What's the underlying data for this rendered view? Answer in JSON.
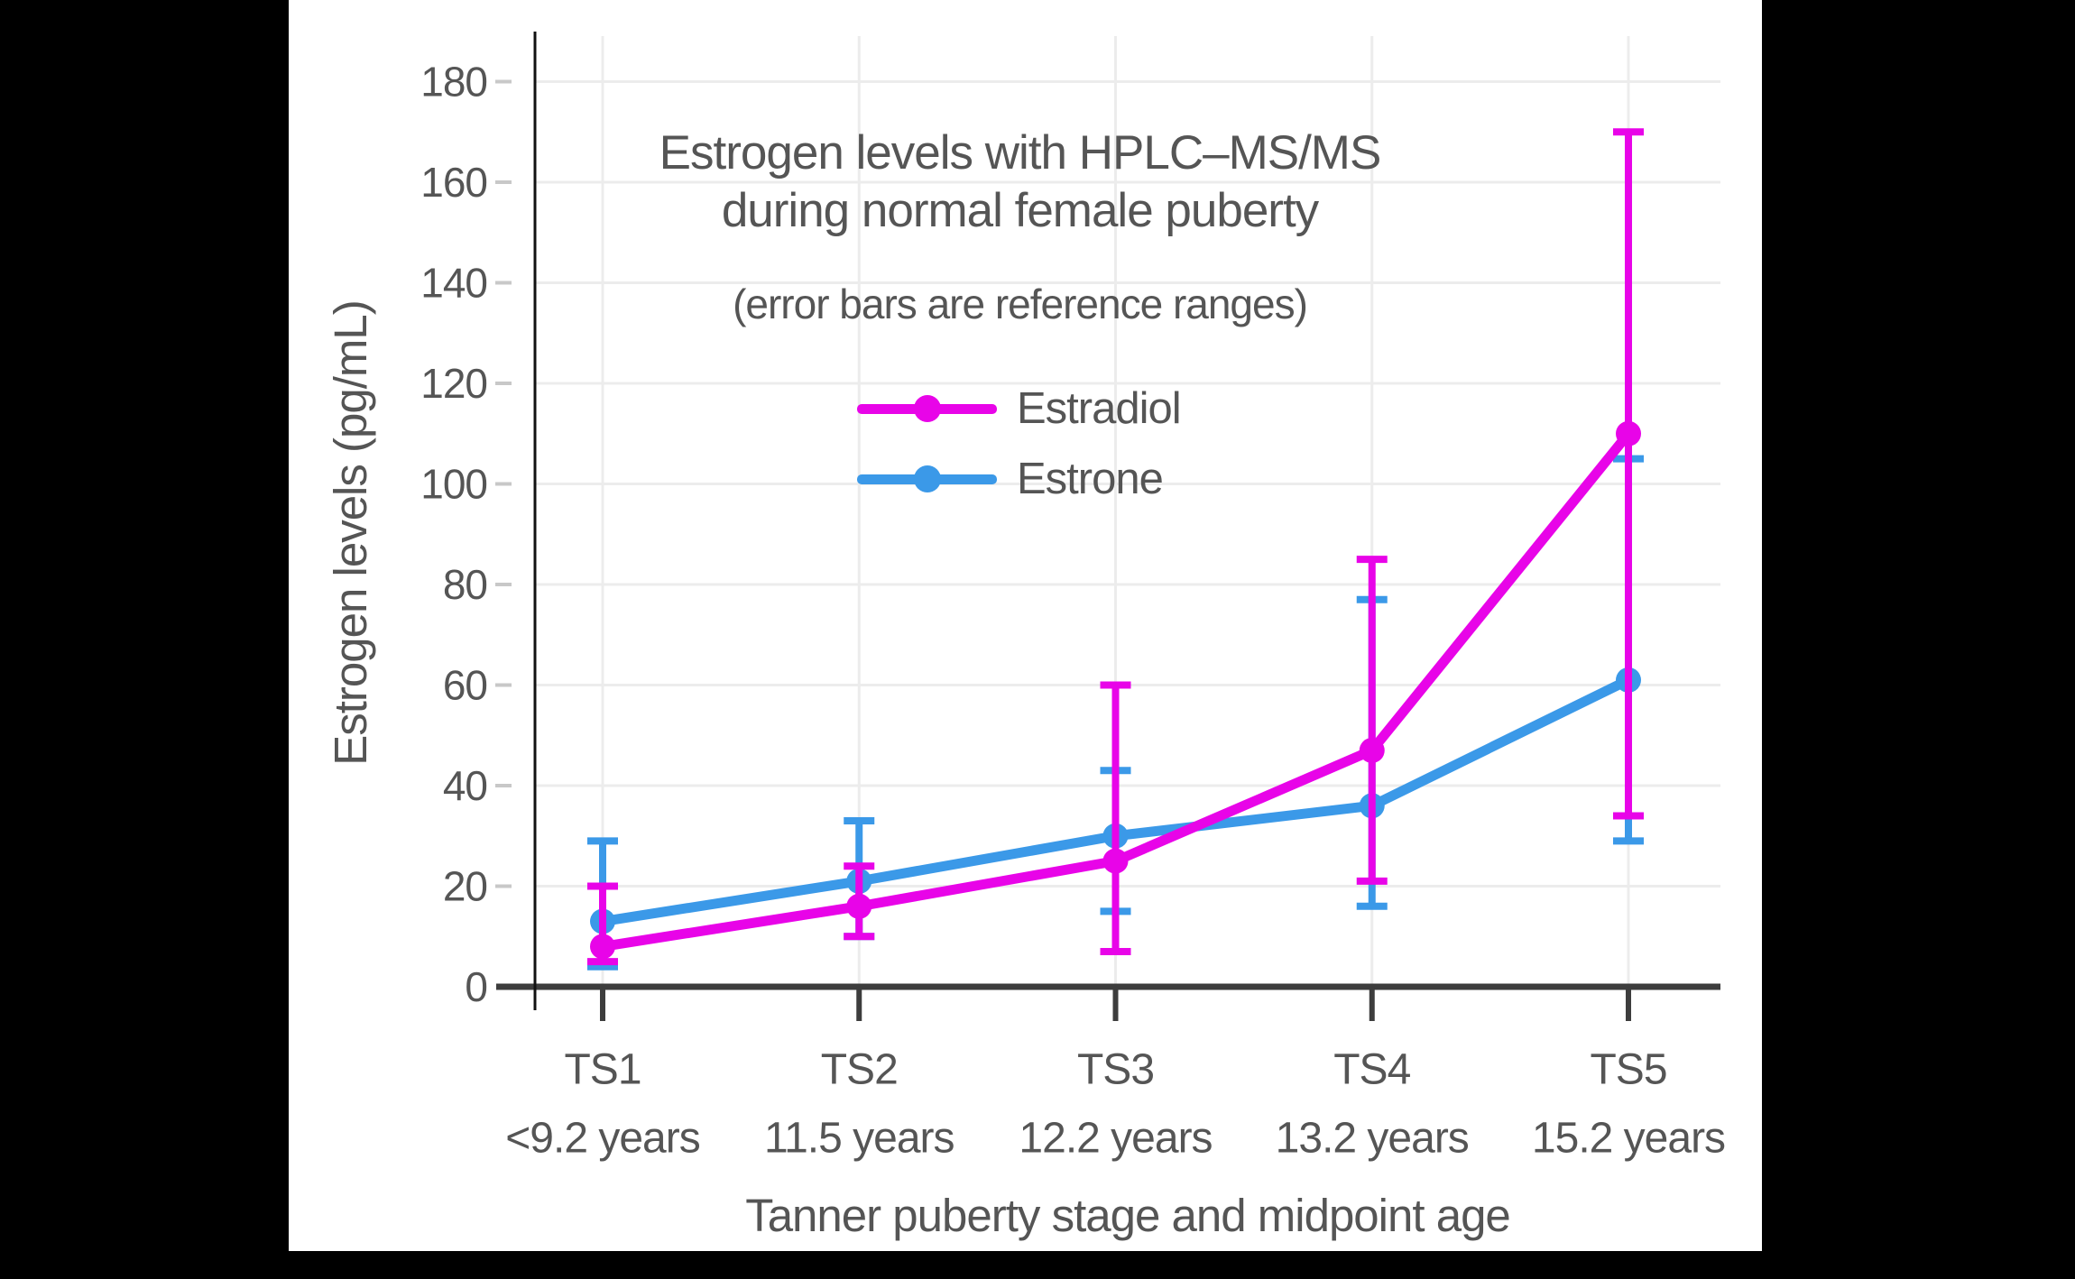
{
  "chart_data": {
    "type": "line",
    "title_lines": [
      "Estrogen levels with HPLC–MS/MS",
      "during normal female puberty"
    ],
    "subtitle": "(error bars are reference ranges)",
    "xlabel": "Tanner puberty stage and midpoint age",
    "ylabel": "Estrogen levels (pg/mL)",
    "ylim": [
      0,
      180
    ],
    "ytick_step": 20,
    "grid": true,
    "legend_position": "upper-center-inside",
    "error_bars": "reference ranges",
    "categories": [
      {
        "stage": "TS1",
        "age": "<9.2 years"
      },
      {
        "stage": "TS2",
        "age": "11.5 years"
      },
      {
        "stage": "TS3",
        "age": "12.2 years"
      },
      {
        "stage": "TS4",
        "age": "13.2 years"
      },
      {
        "stage": "TS5",
        "age": "15.2 years"
      }
    ],
    "series": [
      {
        "name": "Estradiol",
        "color": "#E804E8",
        "values": [
          8,
          16,
          25,
          47,
          110
        ],
        "lower": [
          5,
          10,
          7,
          21,
          34
        ],
        "upper": [
          20,
          24,
          60,
          85,
          170
        ]
      },
      {
        "name": "Estrone",
        "color": "#3B99E8",
        "values": [
          13,
          21,
          30,
          36,
          61
        ],
        "lower": [
          4,
          10,
          15,
          16,
          29
        ],
        "upper": [
          29,
          33,
          43,
          77,
          105
        ]
      }
    ],
    "colors": {
      "estradiol": "#E804E8",
      "estrone": "#3B99E8",
      "text": "#555555",
      "x_axis": "#3D3D3D",
      "y_axis": "#111111",
      "grid": "#ECECEC",
      "tick_dash": "#C8C8C8",
      "background": "#FFFFFF",
      "matte": "#000000"
    }
  }
}
